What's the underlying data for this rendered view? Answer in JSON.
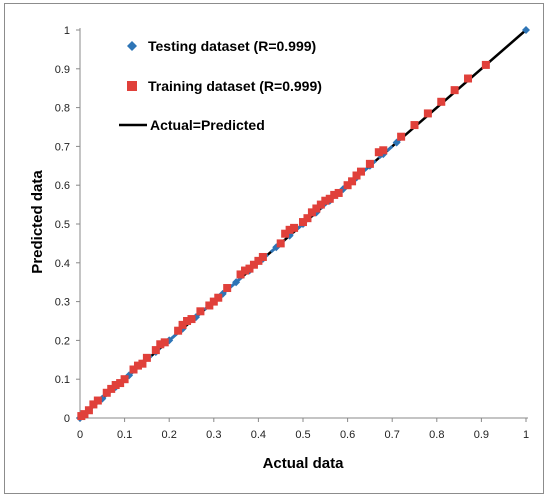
{
  "chart_data": {
    "type": "scatter",
    "xlabel": "Actual data",
    "ylabel": "Predicted data",
    "xlim": [
      0,
      1
    ],
    "ylim": [
      0,
      1
    ],
    "x_ticks": [
      "0",
      "0.1",
      "0.2",
      "0.3",
      "0.4",
      "0.5",
      "0.6",
      "0.7",
      "0.8",
      "0.9",
      "1"
    ],
    "y_ticks": [
      "0",
      "0.1",
      "0.2",
      "0.3",
      "0.4",
      "0.5",
      "0.6",
      "0.7",
      "0.8",
      "0.9",
      "1"
    ],
    "grid": false,
    "legend_position": "top-left",
    "series": [
      {
        "name": "Testing dataset (R=0.999)",
        "marker": "diamond",
        "color": "#2e75b6",
        "points": [
          [
            0.0,
            0.0
          ],
          [
            0.02,
            0.02
          ],
          [
            0.05,
            0.05
          ],
          [
            0.08,
            0.08
          ],
          [
            0.11,
            0.11
          ],
          [
            0.14,
            0.14
          ],
          [
            0.17,
            0.17
          ],
          [
            0.2,
            0.2
          ],
          [
            0.23,
            0.23
          ],
          [
            0.26,
            0.26
          ],
          [
            0.29,
            0.29
          ],
          [
            0.32,
            0.32
          ],
          [
            0.35,
            0.35
          ],
          [
            0.38,
            0.38
          ],
          [
            0.41,
            0.41
          ],
          [
            0.44,
            0.44
          ],
          [
            0.47,
            0.47
          ],
          [
            0.5,
            0.5
          ],
          [
            0.53,
            0.53
          ],
          [
            0.56,
            0.56
          ],
          [
            0.59,
            0.59
          ],
          [
            0.62,
            0.62
          ],
          [
            0.65,
            0.65
          ],
          [
            0.68,
            0.68
          ],
          [
            0.71,
            0.71
          ],
          [
            1.0,
            1.0
          ]
        ]
      },
      {
        "name": "Training dataset (R=0.999)",
        "marker": "square",
        "color": "#e0403a",
        "points": [
          [
            0.003,
            0.005
          ],
          [
            0.01,
            0.01
          ],
          [
            0.02,
            0.02
          ],
          [
            0.03,
            0.035
          ],
          [
            0.04,
            0.045
          ],
          [
            0.06,
            0.065
          ],
          [
            0.07,
            0.075
          ],
          [
            0.08,
            0.085
          ],
          [
            0.09,
            0.09
          ],
          [
            0.1,
            0.1
          ],
          [
            0.12,
            0.125
          ],
          [
            0.13,
            0.135
          ],
          [
            0.14,
            0.14
          ],
          [
            0.15,
            0.155
          ],
          [
            0.17,
            0.175
          ],
          [
            0.18,
            0.19
          ],
          [
            0.19,
            0.195
          ],
          [
            0.22,
            0.225
          ],
          [
            0.23,
            0.24
          ],
          [
            0.24,
            0.25
          ],
          [
            0.25,
            0.255
          ],
          [
            0.27,
            0.275
          ],
          [
            0.29,
            0.29
          ],
          [
            0.3,
            0.3
          ],
          [
            0.31,
            0.31
          ],
          [
            0.33,
            0.335
          ],
          [
            0.36,
            0.37
          ],
          [
            0.37,
            0.38
          ],
          [
            0.38,
            0.385
          ],
          [
            0.39,
            0.395
          ],
          [
            0.4,
            0.405
          ],
          [
            0.41,
            0.415
          ],
          [
            0.45,
            0.45
          ],
          [
            0.46,
            0.475
          ],
          [
            0.47,
            0.485
          ],
          [
            0.48,
            0.49
          ],
          [
            0.5,
            0.505
          ],
          [
            0.51,
            0.515
          ],
          [
            0.52,
            0.53
          ],
          [
            0.53,
            0.54
          ],
          [
            0.54,
            0.55
          ],
          [
            0.55,
            0.56
          ],
          [
            0.56,
            0.565
          ],
          [
            0.57,
            0.575
          ],
          [
            0.58,
            0.58
          ],
          [
            0.6,
            0.6
          ],
          [
            0.61,
            0.61
          ],
          [
            0.62,
            0.625
          ],
          [
            0.63,
            0.635
          ],
          [
            0.65,
            0.655
          ],
          [
            0.67,
            0.685
          ],
          [
            0.68,
            0.69
          ],
          [
            0.72,
            0.725
          ],
          [
            0.75,
            0.755
          ],
          [
            0.78,
            0.785
          ],
          [
            0.81,
            0.815
          ],
          [
            0.84,
            0.845
          ],
          [
            0.87,
            0.875
          ],
          [
            0.91,
            0.91
          ]
        ]
      },
      {
        "name": "Actual=Predicted",
        "marker": "line",
        "color": "#000000",
        "points": [
          [
            0,
            0
          ],
          [
            1,
            1
          ]
        ]
      }
    ]
  }
}
